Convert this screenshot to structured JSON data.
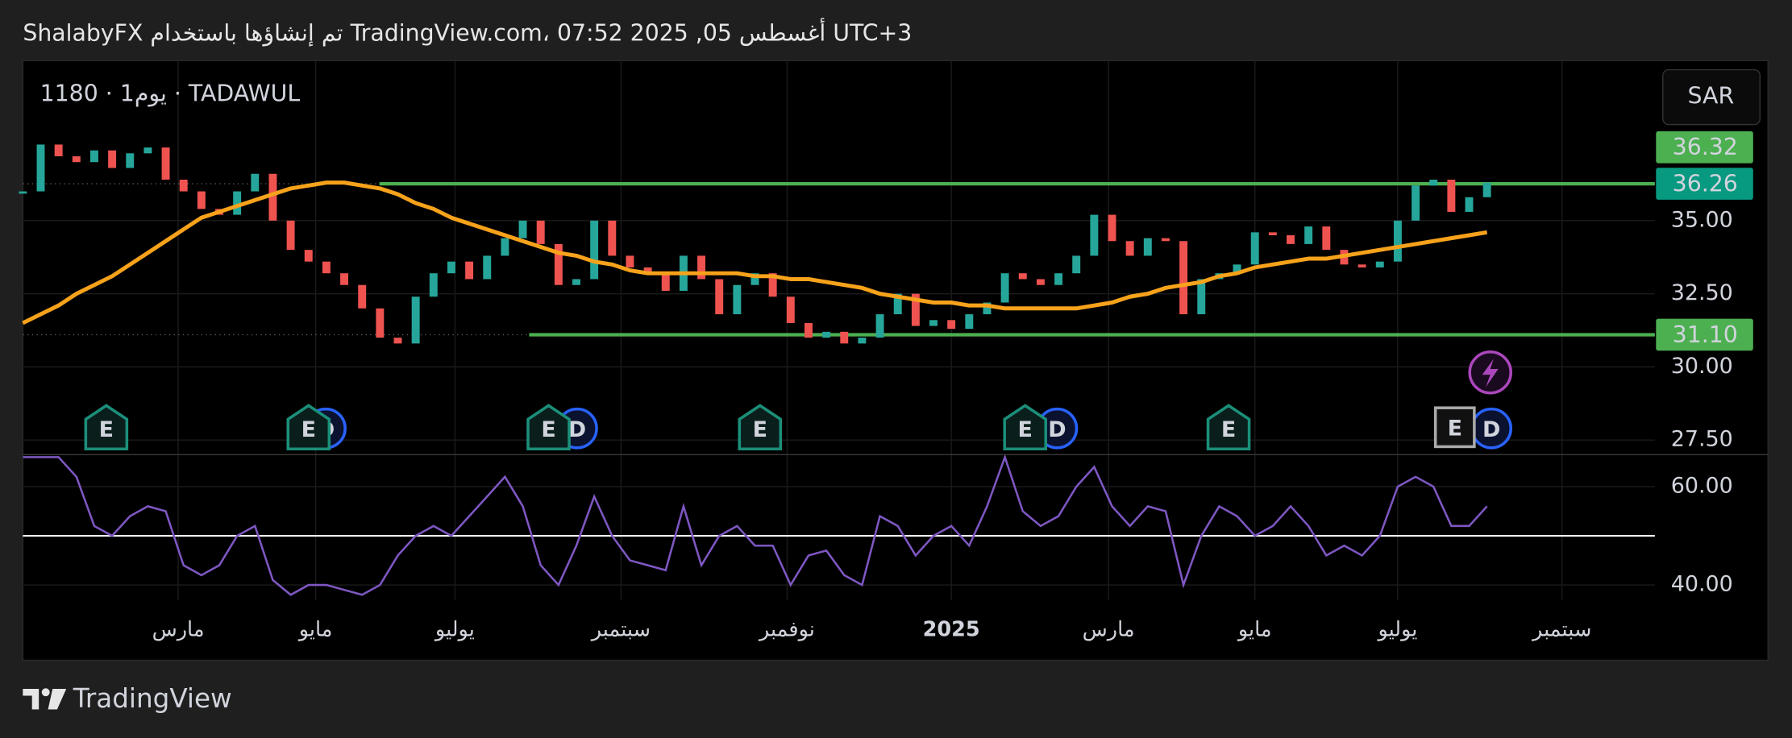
{
  "header": {
    "text": "ShalabyFX تم إنشاؤها باستخدام TradingView.com، أغسطس 05, 2025 07:52 UTC+3"
  },
  "footer": {
    "brand": "TradingView"
  },
  "chart_data": {
    "type": "stock",
    "symbol_label": "1180 · 1يوم · TADAWUL",
    "currency": "SAR",
    "earnings_marker": "E",
    "dividend_marker": "D",
    "xlim": [
      0,
      91.4
    ],
    "xticks": [
      {
        "value": 8.7,
        "label": "مارس"
      },
      {
        "value": 16.4,
        "label": "مايو"
      },
      {
        "value": 24.2,
        "label": "يوليو"
      },
      {
        "value": 33.5,
        "label": "سبتمبر"
      },
      {
        "value": 42.8,
        "label": "نوفمبر"
      },
      {
        "value": 52.0,
        "label": "2025"
      },
      {
        "value": 60.8,
        "label": "مارس"
      },
      {
        "value": 69.0,
        "label": "مايو"
      },
      {
        "value": 77.0,
        "label": "يوليو"
      },
      {
        "value": 86.2,
        "label": "سبتمبر"
      }
    ],
    "ylim": [
      27,
      40.47
    ],
    "yticks": [
      {
        "value": 27.5,
        "label": "27.50"
      },
      {
        "value": 30,
        "label": "30.00"
      },
      {
        "value": 32.5,
        "label": "32.50"
      },
      {
        "value": 35,
        "label": "35.00"
      }
    ],
    "grid": true,
    "price": {
      "up_color": "#26a69a",
      "down_color": "#ef5350",
      "values": [
        36.0,
        37.6,
        37.2,
        37.0,
        37.4,
        36.8,
        37.3,
        37.5,
        36.4,
        36.0,
        35.4,
        35.2,
        36.0,
        36.6,
        35.0,
        34.0,
        33.6,
        33.2,
        32.8,
        32.0,
        31.0,
        30.8,
        32.4,
        33.2,
        33.6,
        33.0,
        33.8,
        34.4,
        35.0,
        34.2,
        32.8,
        33.0,
        35.0,
        33.8,
        33.4,
        33.2,
        32.6,
        33.8,
        33.0,
        31.8,
        32.8,
        33.2,
        32.4,
        31.5,
        31.0,
        31.2,
        30.8,
        31.0,
        31.8,
        32.5,
        31.4,
        31.6,
        31.3,
        31.8,
        32.2,
        33.2,
        33.0,
        32.8,
        33.2,
        33.8,
        35.2,
        34.3,
        33.8,
        34.4,
        34.3,
        31.8,
        33.0,
        33.2,
        33.5,
        34.6,
        34.5,
        34.2,
        34.8,
        34.0,
        33.5,
        33.4,
        33.6,
        35.0,
        36.2,
        36.4,
        35.3,
        35.8,
        36.3
      ]
    },
    "moving_average": {
      "color": "#f7a21b",
      "values": [
        31.5,
        31.8,
        32.1,
        32.5,
        32.8,
        33.1,
        33.5,
        33.9,
        34.3,
        34.7,
        35.1,
        35.3,
        35.5,
        35.7,
        35.9,
        36.1,
        36.2,
        36.3,
        36.3,
        36.2,
        36.1,
        35.9,
        35.6,
        35.4,
        35.1,
        34.9,
        34.7,
        34.5,
        34.3,
        34.1,
        33.9,
        33.8,
        33.6,
        33.5,
        33.3,
        33.2,
        33.2,
        33.2,
        33.2,
        33.2,
        33.2,
        33.1,
        33.1,
        33.0,
        33.0,
        32.9,
        32.8,
        32.7,
        32.5,
        32.4,
        32.3,
        32.2,
        32.2,
        32.1,
        32.1,
        32.0,
        32.0,
        32.0,
        32.0,
        32.0,
        32.1,
        32.2,
        32.4,
        32.5,
        32.7,
        32.8,
        32.9,
        33.1,
        33.2,
        33.4,
        33.5,
        33.6,
        33.7,
        33.7,
        33.8,
        33.9,
        34.0,
        34.1,
        34.2,
        34.3,
        34.4,
        34.5,
        34.6
      ]
    },
    "price_labels": [
      {
        "value": 36.32,
        "color": "#4caf50"
      },
      {
        "value": 36.26,
        "color": "#089981",
        "level": true
      },
      {
        "value": 31.1,
        "label": "31.10",
        "color": "#4caf50",
        "level": true
      }
    ],
    "level_color": "#4caf50",
    "rsi": {
      "color": "#7e57c2",
      "level": 50,
      "ylim": [
        37,
        66.5
      ],
      "yticks": [
        {
          "value": 40,
          "label": "40.00"
        },
        {
          "value": 60,
          "label": "60.00"
        }
      ],
      "values": [
        66,
        66,
        66,
        62,
        52,
        50,
        54,
        56,
        55,
        44,
        42,
        44,
        50,
        52,
        41,
        38,
        40,
        40,
        39,
        38,
        40,
        46,
        50,
        52,
        50,
        54,
        58,
        62,
        56,
        44,
        40,
        48,
        58,
        50,
        45,
        44,
        43,
        56,
        44,
        50,
        52,
        48,
        48,
        40,
        46,
        47,
        42,
        40,
        54,
        52,
        46,
        50,
        52,
        48,
        56,
        66,
        55,
        52,
        54,
        60,
        64,
        56,
        52,
        56,
        55,
        40,
        50,
        56,
        54,
        50,
        52,
        56,
        52,
        46,
        48,
        46,
        50,
        60,
        62,
        60,
        52,
        52,
        56
      ]
    }
  }
}
